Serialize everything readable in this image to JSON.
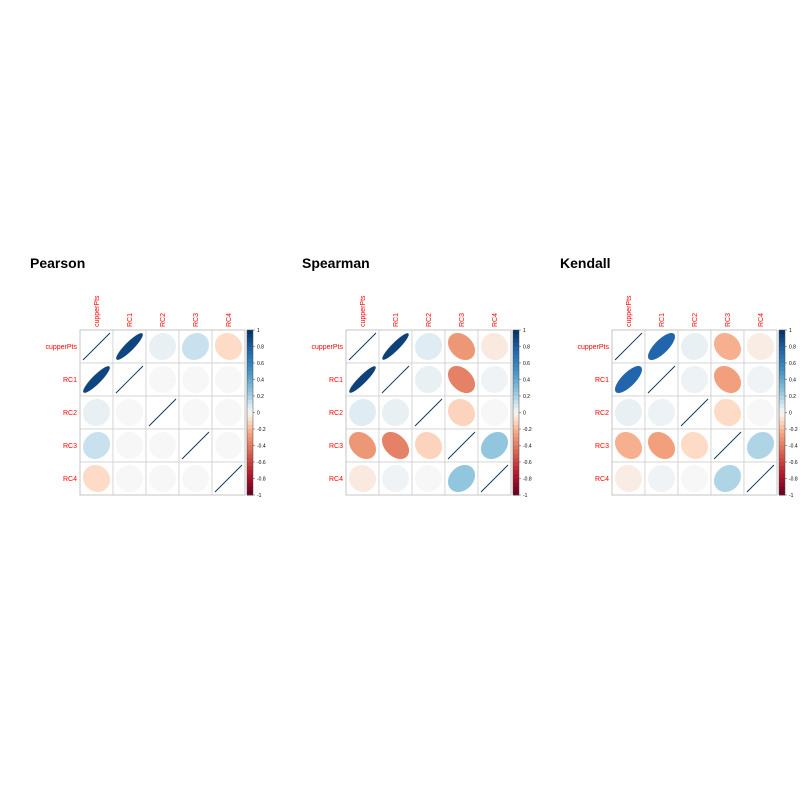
{
  "figure": {
    "variables": [
      "cupperPts",
      "RC1",
      "RC2",
      "RC3",
      "RC4"
    ],
    "colorbar_ticks": [
      "1",
      "0.8",
      "0.6",
      "0.4",
      "0.2",
      "0",
      "-0.2",
      "-0.4",
      "-0.6",
      "-0.8",
      "-1"
    ]
  },
  "chart_data": [
    {
      "type": "heatmap",
      "subtype": "correlation-ellipse",
      "title": "Pearson",
      "variables": [
        "cupperPts",
        "RC1",
        "RC2",
        "RC3",
        "RC4"
      ],
      "matrix": [
        [
          1.0,
          0.9,
          0.04,
          0.12,
          -0.1
        ],
        [
          0.9,
          1.0,
          0.0,
          0.0,
          0.0
        ],
        [
          0.04,
          0.0,
          1.0,
          0.0,
          0.0
        ],
        [
          0.12,
          0.0,
          0.0,
          1.0,
          0.0
        ],
        [
          -0.1,
          0.0,
          0.0,
          0.0,
          1.0
        ]
      ],
      "colorbar_range": [
        -1,
        1
      ],
      "grid": true
    },
    {
      "type": "heatmap",
      "subtype": "correlation-ellipse",
      "title": "Spearman",
      "variables": [
        "cupperPts",
        "RC1",
        "RC2",
        "RC3",
        "RC4"
      ],
      "matrix": [
        [
          1.0,
          0.92,
          0.06,
          -0.3,
          -0.05
        ],
        [
          0.92,
          1.0,
          0.04,
          -0.38,
          0.02
        ],
        [
          0.06,
          0.04,
          1.0,
          -0.12,
          0.0
        ],
        [
          -0.3,
          -0.38,
          -0.12,
          1.0,
          0.25
        ],
        [
          -0.05,
          0.02,
          0.0,
          0.25,
          1.0
        ]
      ],
      "colorbar_range": [
        -1,
        1
      ],
      "grid": true
    },
    {
      "type": "heatmap",
      "subtype": "correlation-ellipse",
      "title": "Kendall",
      "variables": [
        "cupperPts",
        "RC1",
        "RC2",
        "RC3",
        "RC4"
      ],
      "matrix": [
        [
          1.0,
          0.75,
          0.04,
          -0.22,
          -0.04
        ],
        [
          0.75,
          1.0,
          0.03,
          -0.27,
          0.02
        ],
        [
          0.04,
          0.03,
          1.0,
          -0.1,
          0.0
        ],
        [
          -0.22,
          -0.27,
          -0.1,
          1.0,
          0.18
        ],
        [
          -0.04,
          0.02,
          0.0,
          0.18,
          1.0
        ]
      ],
      "colorbar_range": [
        -1,
        1
      ],
      "grid": true
    }
  ]
}
